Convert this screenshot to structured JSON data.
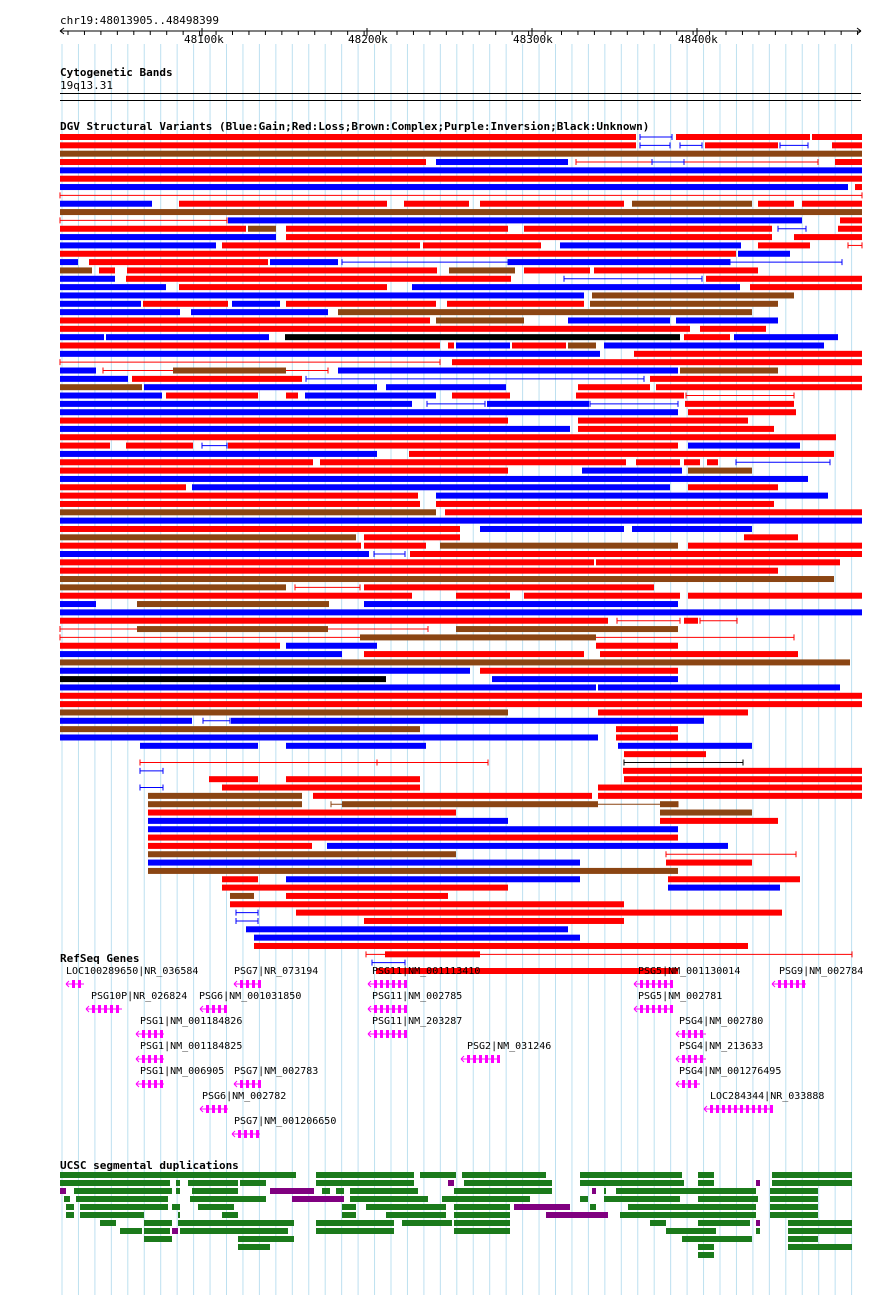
{
  "ruler": {
    "position": "chr19:48013905..48498399",
    "ticks": [
      "48100k",
      "48200k",
      "48300k",
      "48400k"
    ]
  },
  "tracks": {
    "cytoband": {
      "title": "Cytogenetic Bands",
      "band": "19q13.31"
    },
    "dgv": {
      "title": "DGV Structural Variants (Blue:Gain;Red:Loss;Brown:Complex;Purple:Inversion;Black:Unknown)"
    },
    "refseq": {
      "title": "RefSeq Genes"
    },
    "segdup": {
      "title": "UCSC segmental duplications"
    }
  },
  "genes": [
    {
      "label": "LOC100289650|NR_036584"
    },
    {
      "label": "PSG7|NR_073194"
    },
    {
      "label": "PSG11|NM_001113410"
    },
    {
      "label": "PSG5|NM_001130014"
    },
    {
      "label": "PSG9|NM_002784"
    },
    {
      "label": "PSG10P|NR_026824"
    },
    {
      "label": "PSG6|NM_001031850"
    },
    {
      "label": "PSG11|NM_002785"
    },
    {
      "label": "PSG5|NM_002781"
    },
    {
      "label": "PSG1|NM_001184826"
    },
    {
      "label": "PSG11|NM_203287"
    },
    {
      "label": "PSG4|NM_002780"
    },
    {
      "label": "PSG1|NM_001184825"
    },
    {
      "label": "PSG2|NM_031246"
    },
    {
      "label": "PSG4|NM_213633"
    },
    {
      "label": "PSG1|NM_006905"
    },
    {
      "label": "PSG7|NM_002783"
    },
    {
      "label": "PSG4|NM_001276495"
    },
    {
      "label": "PSG6|NM_002782"
    },
    {
      "label": "LOC284344|NR_033888"
    },
    {
      "label": "PSG7|NM_001206650"
    }
  ],
  "colors": {
    "gain": "#0000ff",
    "loss": "#ff0000",
    "complex": "#8b4513",
    "unknown": "#000000",
    "gene": "#ff00ff",
    "segdup_green": "#1b7a1b",
    "segdup_purple": "#800080",
    "grid": "#bde0f0"
  }
}
